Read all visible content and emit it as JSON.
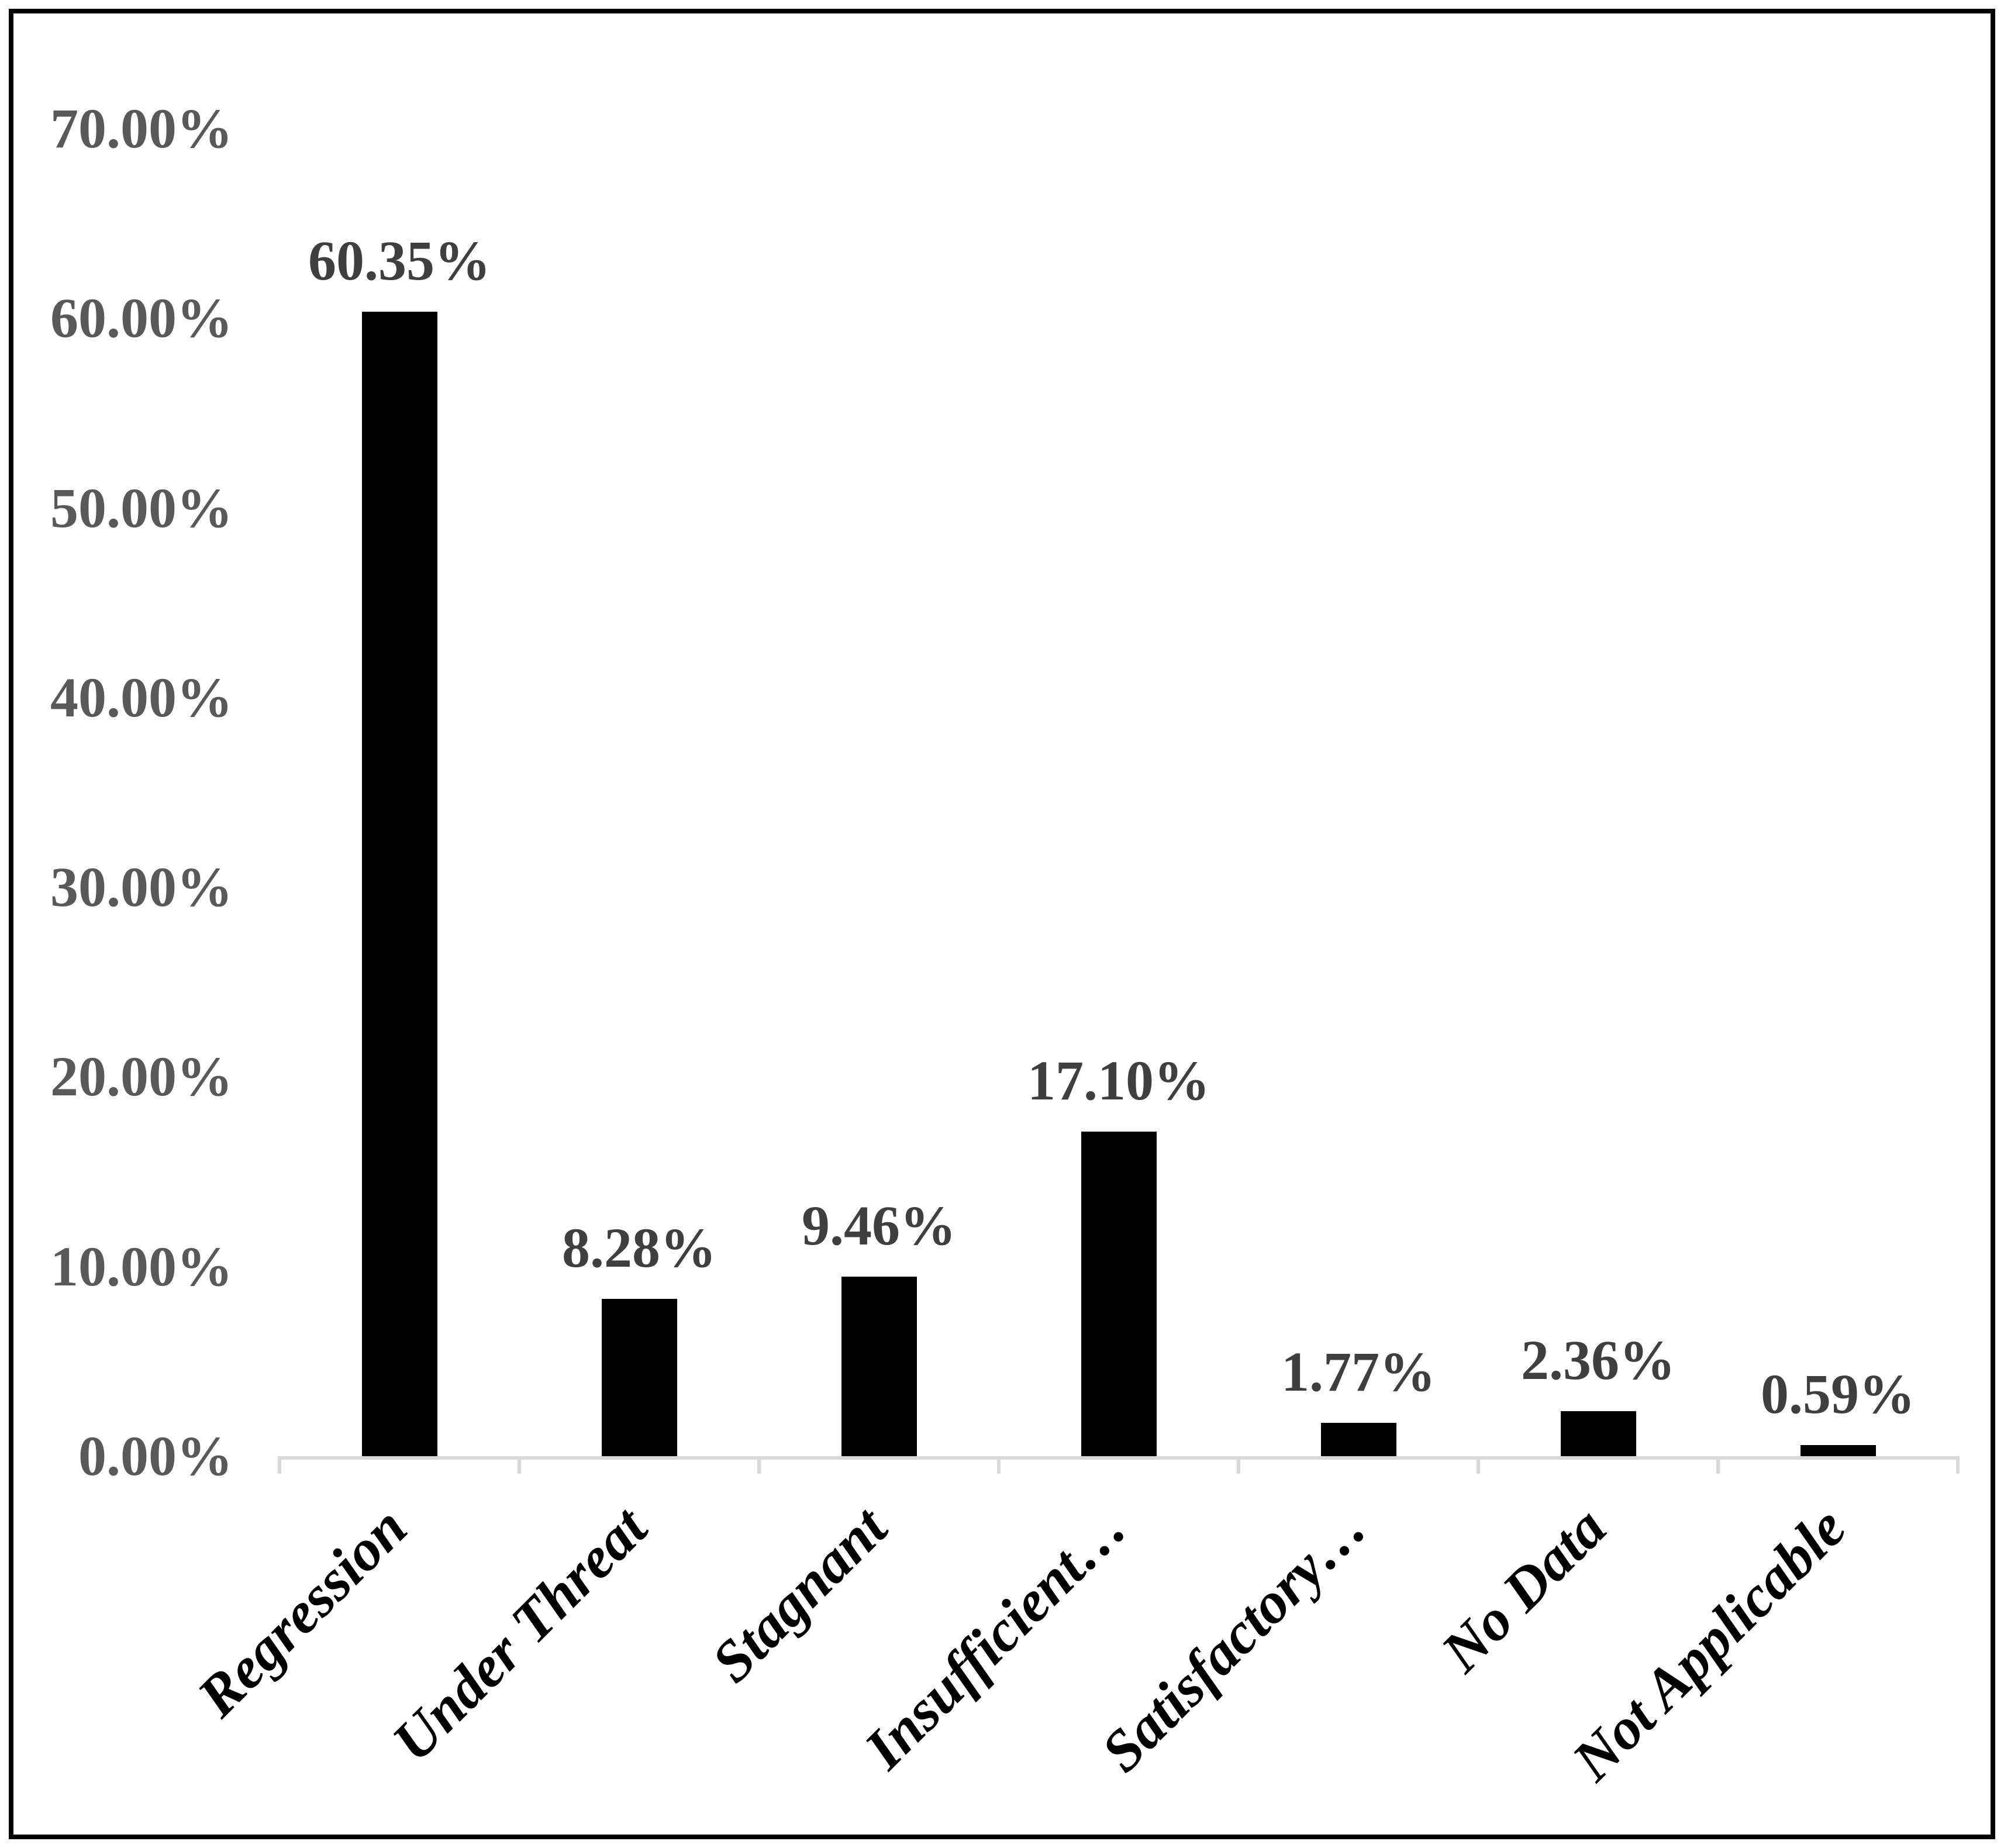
{
  "chart_data": {
    "type": "bar",
    "title": "",
    "xlabel": "",
    "ylabel": "",
    "categories": [
      "Regression",
      "Under Threat",
      "Stagnant",
      "Insufficient…",
      "Satisfactory…",
      "No Data",
      "Not Applicable"
    ],
    "values": [
      60.35,
      8.28,
      9.46,
      17.1,
      1.77,
      2.36,
      0.59
    ],
    "data_labels": [
      "60.35%",
      "8.28%",
      "9.46%",
      "17.10%",
      "1.77%",
      "2.36%",
      "0.59%"
    ],
    "y_tick_labels": [
      "0.00%",
      "10.00%",
      "20.00%",
      "30.00%",
      "40.00%",
      "50.00%",
      "60.00%",
      "70.00%"
    ],
    "y_tick_values": [
      0,
      10,
      20,
      30,
      40,
      50,
      60,
      70
    ],
    "ylim": [
      0,
      70
    ],
    "grid": "off",
    "legend": "none",
    "colors": {
      "bar_fill": "#000000",
      "axis_line": "#d9d9d9",
      "y_tick_label": "#595959",
      "data_label": "#3f3f3f",
      "category_label": "#000000",
      "frame_border": "#000000",
      "background": "#ffffff"
    }
  }
}
